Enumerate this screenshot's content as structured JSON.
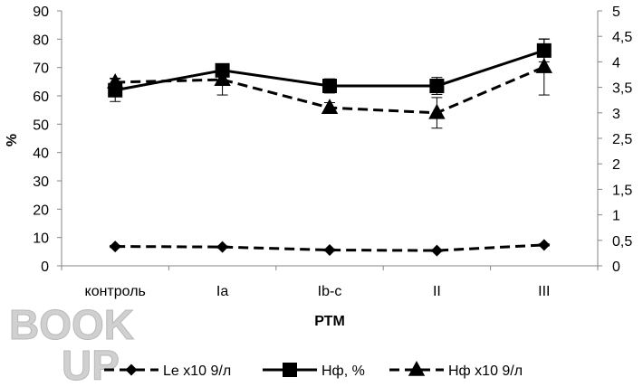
{
  "chart_data": {
    "type": "line",
    "categories": [
      "контроль",
      "Ia",
      "Ib-c",
      "II",
      "III"
    ],
    "xlabel": "РТМ",
    "ylabel": "%",
    "ylim": [
      0,
      90
    ],
    "y_ticks": [
      "0",
      "10",
      "20",
      "30",
      "40",
      "50",
      "60",
      "70",
      "80",
      "90"
    ],
    "y2lim": [
      0,
      5
    ],
    "y2_ticks": [
      "0",
      "0,5",
      "1",
      "1,5",
      "2",
      "2,5",
      "3",
      "3,5",
      "4",
      "4,5",
      "5"
    ],
    "grid": false,
    "legend_position": "bottom",
    "series": [
      {
        "name": "Le x10 9/л",
        "axis": "right",
        "marker": "diamond",
        "dash": true,
        "values": [
          0.38,
          0.37,
          0.31,
          0.3,
          0.41
        ],
        "errors": [
          0.02,
          0.02,
          0.02,
          0.02,
          0.02
        ]
      },
      {
        "name": "Нф, %",
        "axis": "left",
        "marker": "square",
        "dash": false,
        "values": [
          62,
          69,
          63.5,
          63.5,
          76
        ],
        "errors": [
          4,
          2,
          2.5,
          3,
          4
        ]
      },
      {
        "name": "Нф x10 9/л",
        "axis": "right",
        "marker": "triangle",
        "dash": true,
        "values": [
          3.6,
          3.65,
          3.1,
          3.0,
          3.9
        ],
        "errors": [
          0.08,
          0.3,
          0.1,
          0.3,
          0.55
        ]
      }
    ]
  },
  "watermark": {
    "line1": "BOOK",
    "line2": "UP"
  }
}
